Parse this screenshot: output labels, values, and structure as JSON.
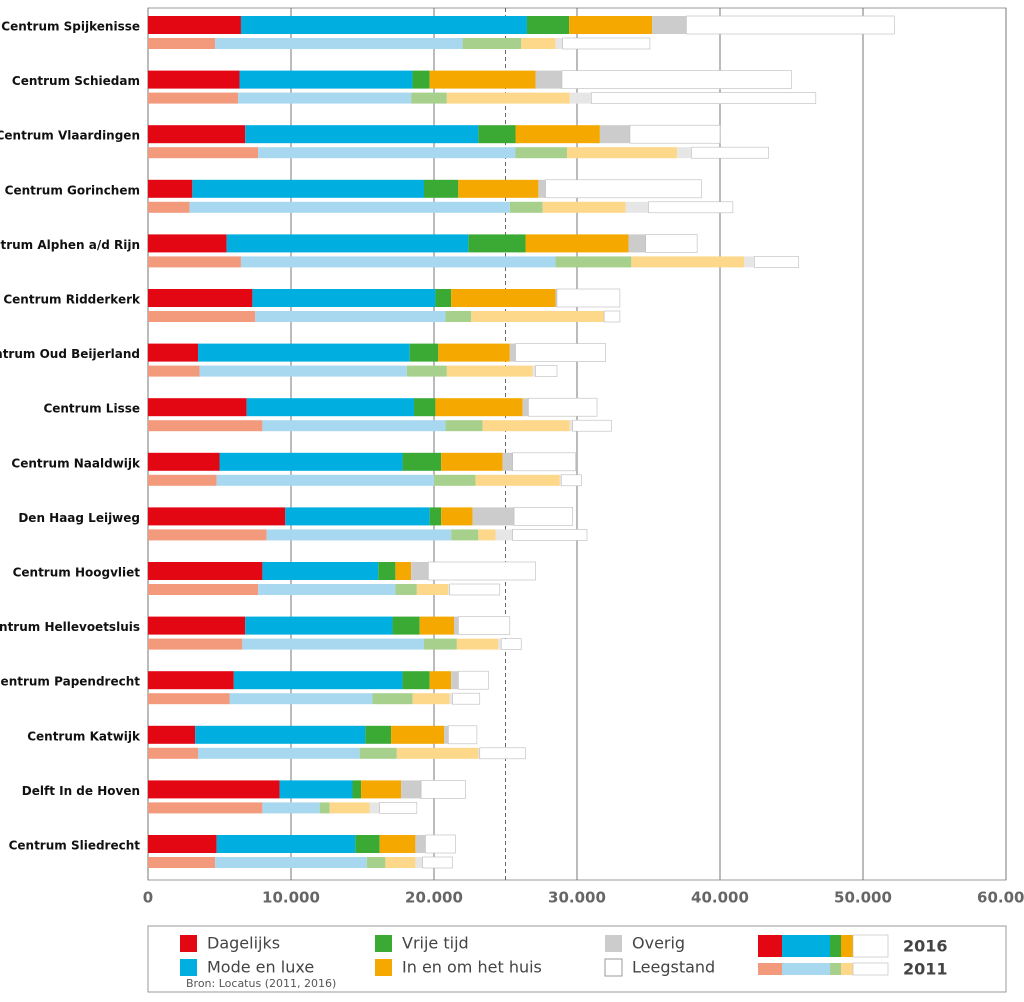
{
  "chart_data": {
    "type": "stacked-bar-horizontal",
    "categories": [
      "Centrum Spijkenisse",
      "Centrum Schiedam",
      "Centrum Vlaardingen",
      "Centrum Gorinchem",
      "Centrum Alphen a/d Rijn",
      "Centrum Ridderkerk",
      "Centrum Oud Beijerland",
      "Centrum Lisse",
      "Centrum Naaldwijk",
      "Den Haag Leijweg",
      "Centrum Hoogvliet",
      "Centrum Hellevoetsluis",
      "Centrum Papendrecht",
      "Centrum Katwijk",
      "Delft In de Hoven",
      "Centrum Sliedrecht"
    ],
    "series": [
      {
        "name": "Dagelijks",
        "colors": [
          "#e30613",
          "#f39a7c"
        ]
      },
      {
        "name": "Mode en luxe",
        "colors": [
          "#00aee0",
          "#a8d8ef"
        ]
      },
      {
        "name": "Vrije tijd",
        "colors": [
          "#3aaa35",
          "#a8d08d"
        ]
      },
      {
        "name": "In en om het huis",
        "colors": [
          "#f5a800",
          "#fdd78a"
        ]
      },
      {
        "name": "Overig",
        "colors": [
          "#cccccc",
          "#e6e6e6"
        ]
      },
      {
        "name": "Leegstand",
        "colors": [
          "#ffffff",
          "#ffffff"
        ]
      }
    ],
    "groups": [
      {
        "name": "2016",
        "values": [
          [
            6500,
            6400,
            6800,
            3100,
            5500,
            7300,
            3500,
            6900,
            5000,
            9600,
            8000,
            6800,
            6000,
            3300,
            9200,
            4800
          ],
          [
            20000,
            12100,
            16300,
            16200,
            16900,
            12800,
            14800,
            11700,
            12800,
            10100,
            8100,
            10300,
            11800,
            11900,
            5100,
            9700
          ],
          [
            2950,
            1200,
            2600,
            2400,
            4000,
            1100,
            2000,
            1500,
            2700,
            800,
            1200,
            1900,
            1900,
            1800,
            600,
            1700
          ],
          [
            5800,
            7400,
            5900,
            5600,
            7200,
            7300,
            5000,
            6100,
            4300,
            2200,
            1100,
            2400,
            1500,
            3700,
            2800,
            2500
          ],
          [
            2400,
            1850,
            2100,
            500,
            1200,
            100,
            400,
            400,
            700,
            2900,
            1200,
            300,
            500,
            300,
            1400,
            700
          ],
          [
            14550,
            16050,
            6300,
            10900,
            3600,
            4400,
            6300,
            4800,
            4400,
            4100,
            7500,
            3600,
            2100,
            2000,
            3100,
            2100
          ]
        ]
      },
      {
        "name": "2011",
        "values": [
          [
            4700,
            6300,
            7700,
            2900,
            6500,
            7500,
            3600,
            8000,
            4800,
            8300,
            7700,
            6600,
            5700,
            3500,
            8000,
            4700
          ],
          [
            17300,
            12100,
            18000,
            22400,
            22000,
            13300,
            14500,
            12800,
            15200,
            12900,
            9600,
            12700,
            10000,
            11300,
            4000,
            10600
          ],
          [
            4100,
            2500,
            3600,
            2300,
            5300,
            1800,
            2800,
            2600,
            2900,
            1900,
            1500,
            2300,
            2800,
            2600,
            700,
            1300
          ],
          [
            2400,
            8600,
            7700,
            5800,
            7900,
            9300,
            6000,
            6100,
            5900,
            1200,
            2200,
            2900,
            2600,
            5700,
            2800,
            2100
          ],
          [
            500,
            1500,
            1000,
            1600,
            700,
            0,
            200,
            200,
            100,
            1200,
            100,
            200,
            200,
            100,
            700,
            500
          ],
          [
            6100,
            15700,
            5400,
            5900,
            3100,
            1100,
            1500,
            2700,
            1400,
            5200,
            3500,
            1400,
            1900,
            3200,
            2600,
            2100
          ]
        ]
      }
    ],
    "xlim": [
      0,
      60000
    ],
    "xticks": [
      0,
      {
        "value": 10000,
        "label": "10.000"
      },
      {
        "value": 20000,
        "label": "20.000"
      },
      {
        "value": 30000,
        "label": "30.000"
      },
      {
        "value": 40000,
        "label": "40.000"
      },
      {
        "value": 50000,
        "label": "50.000"
      },
      {
        "value": 60000,
        "label": "60.000"
      }
    ],
    "reference_line": 25000,
    "grid": true,
    "source": "Bron: Locatus (2011, 2016)"
  }
}
